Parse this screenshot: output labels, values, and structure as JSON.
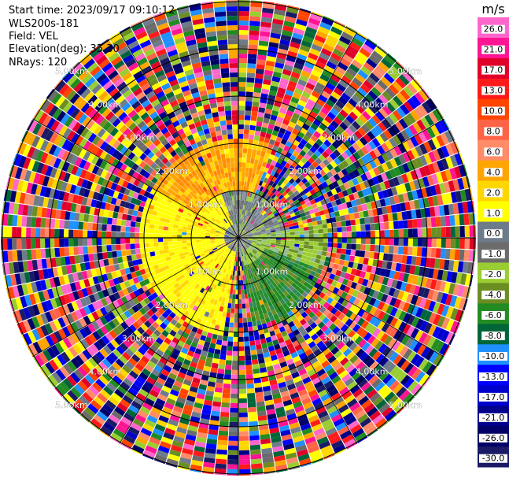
{
  "header": {
    "start_time": "Start time: 2023/09/17 09:10:12",
    "instrument": "WLS200s-181",
    "field": "Field: VEL",
    "elevation": "Elevation(deg): 35.30",
    "nrays": "NRays: 120"
  },
  "chart_data": {
    "type": "heatmap",
    "projection": "polar-ppi",
    "field": "VEL",
    "n_rays": 120,
    "elevation_deg": 35.3,
    "range_ring_labels": [
      "1.00km",
      "2.00km",
      "3.00km",
      "4.00km",
      "5.00km"
    ],
    "range_rings_km": [
      1,
      2,
      3,
      4,
      5
    ],
    "grid": true,
    "colorbar": {
      "unit": "m/s",
      "tick_labels": [
        "26.0",
        "21.0",
        "17.0",
        "13.0",
        "10.0",
        "8.0",
        "6.0",
        "4.0",
        "2.0",
        "1.0",
        "0.0",
        "-1.0",
        "-2.0",
        "-4.0",
        "-6.0",
        "-8.0",
        "-10.0",
        "-13.0",
        "-17.0",
        "-21.0",
        "-26.0",
        "-30.0"
      ],
      "colors": [
        "#ff66cc",
        "#ff1493",
        "#e0002a",
        "#ff1a1a",
        "#ff4500",
        "#ff6347",
        "#ff8c69",
        "#ffa500",
        "#ffd700",
        "#ffff00",
        "#6e7b8b",
        "#6b6b6b",
        "#9acd32",
        "#6b8e23",
        "#228b22",
        "#00663a",
        "#1e90ff",
        "#0000ff",
        "#0000cd",
        "#00008b",
        "#000066",
        "#1a1a66"
      ]
    },
    "velocity_regions": [
      {
        "range_km": [
          0.0,
          0.4
        ],
        "azimuth_deg": [
          0,
          360
        ],
        "dominant": "gray",
        "value_ms": 0.0
      },
      {
        "range_km": [
          0.3,
          1.0
        ],
        "azimuth_deg": [
          270,
          90
        ],
        "dominant": "gray",
        "value_ms": 0.0
      },
      {
        "range_km": [
          0.3,
          2.1
        ],
        "azimuth_deg": [
          190,
          340
        ],
        "dominant": "yellow",
        "value_ms": 2.0
      },
      {
        "range_km": [
          1.0,
          2.1
        ],
        "azimuth_deg": [
          300,
          20
        ],
        "dominant": "orange",
        "value_ms": 4.0
      },
      {
        "range_km": [
          0.3,
          1.9
        ],
        "azimuth_deg": [
          80,
          170
        ],
        "dominant": "olive-green",
        "value_ms": -3.0
      },
      {
        "range_km": [
          0.6,
          1.9
        ],
        "azimuth_deg": [
          110,
          170
        ],
        "dominant": "green",
        "value_ms": -6.0
      },
      {
        "range_km": [
          2.1,
          5.1
        ],
        "azimuth_deg": [
          0,
          360
        ],
        "dominant": "noise",
        "value_ms": null
      }
    ]
  }
}
